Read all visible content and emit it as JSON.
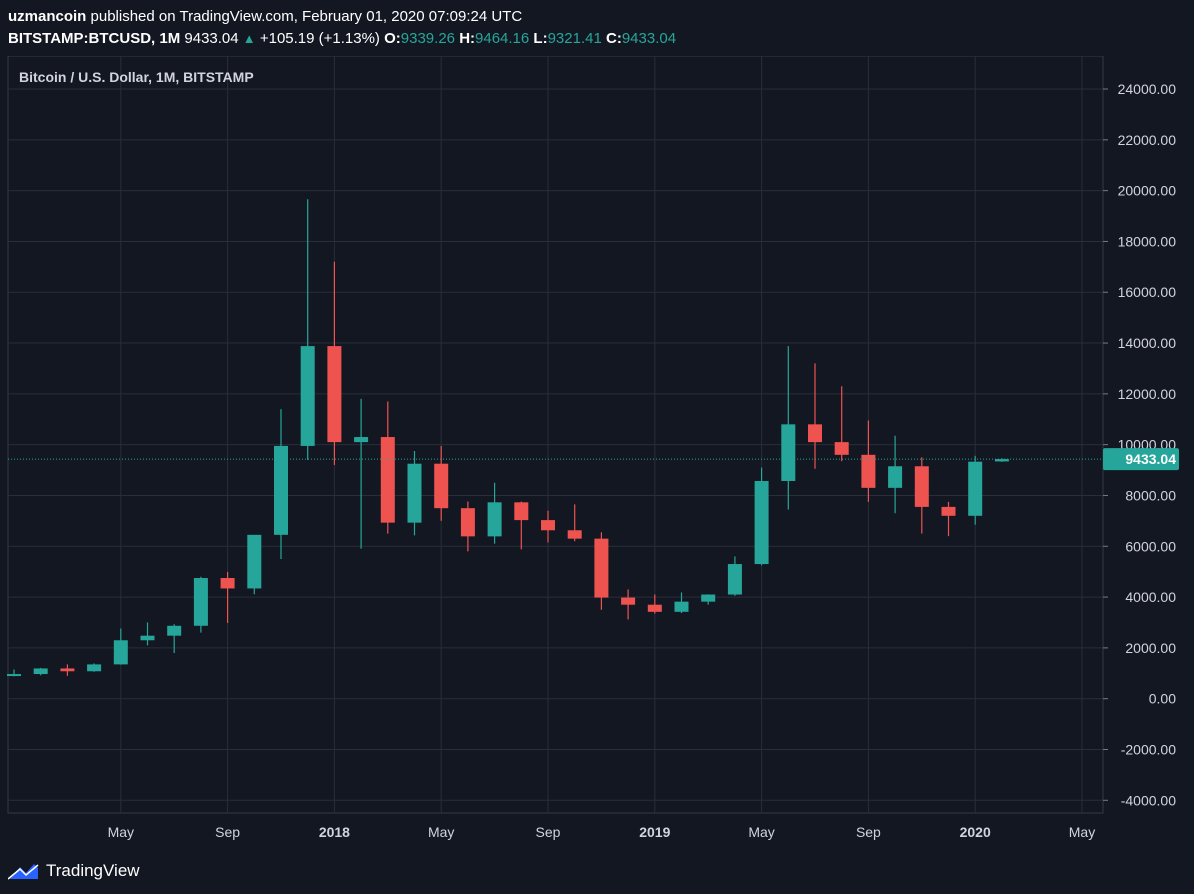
{
  "header": {
    "publisher": "uzmancoin",
    "published_text": "published on TradingView.com, February 01, 2020 07:09:24 UTC",
    "symbol": "BITSTAMP:BTCUSD, 1M",
    "last_price": "9433.04",
    "change": "+105.19 (+1.13%)",
    "open_label": "O:",
    "open": "9339.26",
    "high_label": "H:",
    "high": "9464.16",
    "low_label": "L:",
    "low": "9321.41",
    "close_label": "C:",
    "close": "9433.04"
  },
  "footer": {
    "brand": "TradingView"
  },
  "colors": {
    "up": "#26a69a",
    "down": "#ef5350",
    "background": "#131722",
    "grid": "#2a2e39",
    "text": "#d1d4dc"
  },
  "chart_data": {
    "type": "candlestick",
    "title": "Bitcoin / U.S. Dollar, 1M, BITSTAMP",
    "x_tick_labels": [
      "May",
      "Sep",
      "2018",
      "May",
      "Sep",
      "2019",
      "May",
      "Sep",
      "2020",
      "May"
    ],
    "y_ticks": [
      24000,
      22000,
      20000,
      18000,
      16000,
      14000,
      12000,
      10000,
      8000,
      6000,
      4000,
      2000,
      0,
      -2000,
      -4000
    ],
    "ylim": [
      -4500,
      25300
    ],
    "last_price_label": "9433.04",
    "last_price": 9433.04,
    "grid": true,
    "candles": [
      {
        "date": "2017-01",
        "o": 960,
        "h": 1150,
        "l": 880,
        "c": 970
      },
      {
        "date": "2017-02",
        "o": 970,
        "h": 1210,
        "l": 920,
        "c": 1190
      },
      {
        "date": "2017-03",
        "o": 1190,
        "h": 1350,
        "l": 900,
        "c": 1080
      },
      {
        "date": "2017-04",
        "o": 1080,
        "h": 1390,
        "l": 1060,
        "c": 1350
      },
      {
        "date": "2017-05",
        "o": 1350,
        "h": 2760,
        "l": 1340,
        "c": 2300
      },
      {
        "date": "2017-06",
        "o": 2300,
        "h": 3000,
        "l": 2100,
        "c": 2480
      },
      {
        "date": "2017-07",
        "o": 2480,
        "h": 2930,
        "l": 1800,
        "c": 2870
      },
      {
        "date": "2017-08",
        "o": 2870,
        "h": 4800,
        "l": 2600,
        "c": 4750
      },
      {
        "date": "2017-09",
        "o": 4750,
        "h": 4990,
        "l": 2980,
        "c": 4340
      },
      {
        "date": "2017-10",
        "o": 4340,
        "h": 6450,
        "l": 4110,
        "c": 6450
      },
      {
        "date": "2017-11",
        "o": 6450,
        "h": 11400,
        "l": 5500,
        "c": 9950
      },
      {
        "date": "2017-12",
        "o": 9950,
        "h": 19660,
        "l": 9400,
        "c": 13880
      },
      {
        "date": "2018-01",
        "o": 13880,
        "h": 17200,
        "l": 9200,
        "c": 10100
      },
      {
        "date": "2018-02",
        "o": 10100,
        "h": 11800,
        "l": 5900,
        "c": 10300
      },
      {
        "date": "2018-03",
        "o": 10300,
        "h": 11700,
        "l": 6500,
        "c": 6930
      },
      {
        "date": "2018-04",
        "o": 6930,
        "h": 9750,
        "l": 6430,
        "c": 9250
      },
      {
        "date": "2018-05",
        "o": 9250,
        "h": 9950,
        "l": 7000,
        "c": 7500
      },
      {
        "date": "2018-06",
        "o": 7500,
        "h": 7760,
        "l": 5800,
        "c": 6390
      },
      {
        "date": "2018-07",
        "o": 6390,
        "h": 8500,
        "l": 6100,
        "c": 7730
      },
      {
        "date": "2018-08",
        "o": 7730,
        "h": 7760,
        "l": 5880,
        "c": 7030
      },
      {
        "date": "2018-09",
        "o": 7030,
        "h": 7400,
        "l": 6150,
        "c": 6630
      },
      {
        "date": "2018-10",
        "o": 6630,
        "h": 7650,
        "l": 6200,
        "c": 6300
      },
      {
        "date": "2018-11",
        "o": 6300,
        "h": 6550,
        "l": 3500,
        "c": 3980
      },
      {
        "date": "2018-12",
        "o": 3980,
        "h": 4300,
        "l": 3120,
        "c": 3700
      },
      {
        "date": "2019-01",
        "o": 3700,
        "h": 4100,
        "l": 3350,
        "c": 3420
      },
      {
        "date": "2019-02",
        "o": 3420,
        "h": 4180,
        "l": 3370,
        "c": 3820
      },
      {
        "date": "2019-03",
        "o": 3820,
        "h": 4110,
        "l": 3700,
        "c": 4100
      },
      {
        "date": "2019-04",
        "o": 4100,
        "h": 5600,
        "l": 4050,
        "c": 5300
      },
      {
        "date": "2019-05",
        "o": 5300,
        "h": 9100,
        "l": 5250,
        "c": 8570
      },
      {
        "date": "2019-06",
        "o": 8570,
        "h": 13880,
        "l": 7450,
        "c": 10800
      },
      {
        "date": "2019-07",
        "o": 10800,
        "h": 13200,
        "l": 9050,
        "c": 10100
      },
      {
        "date": "2019-08",
        "o": 10100,
        "h": 12300,
        "l": 9350,
        "c": 9600
      },
      {
        "date": "2019-09",
        "o": 9600,
        "h": 10950,
        "l": 7750,
        "c": 8300
      },
      {
        "date": "2019-10",
        "o": 8300,
        "h": 10350,
        "l": 7300,
        "c": 9150
      },
      {
        "date": "2019-11",
        "o": 9150,
        "h": 9500,
        "l": 6500,
        "c": 7550
      },
      {
        "date": "2019-12",
        "o": 7550,
        "h": 7750,
        "l": 6400,
        "c": 7200
      },
      {
        "date": "2020-01",
        "o": 7200,
        "h": 9560,
        "l": 6850,
        "c": 9330
      },
      {
        "date": "2020-02",
        "o": 9339.26,
        "h": 9464.16,
        "l": 9321.41,
        "c": 9433.04
      }
    ]
  }
}
